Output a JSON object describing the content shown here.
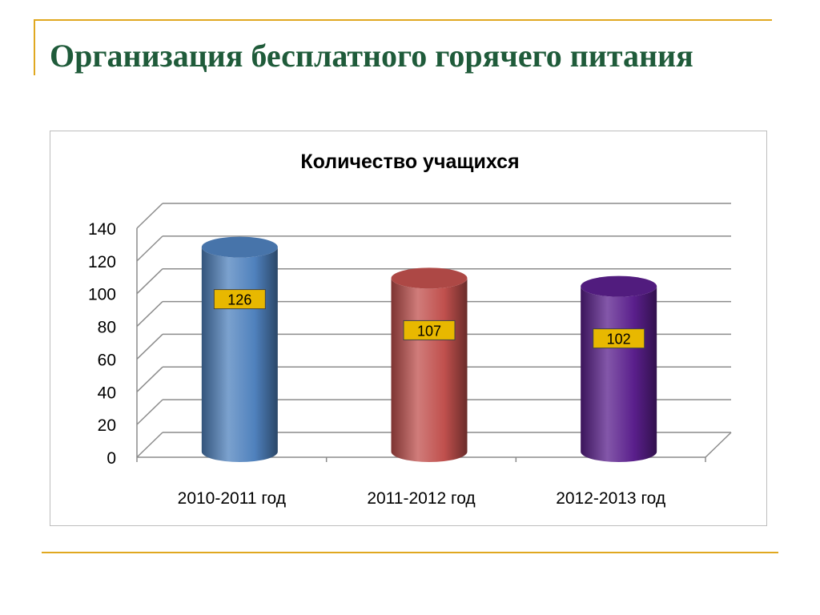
{
  "slide": {
    "title": "Организация бесплатного горячего питания"
  },
  "colors": {
    "title": "#1f5b3a",
    "accent_line": "#e0a820",
    "label_box": "#e8b800"
  },
  "chart_data": {
    "type": "bar",
    "title": "Количество учащихся",
    "xlabel": "",
    "ylabel": "",
    "categories": [
      "2010-2011 год",
      "2011-2012 год",
      "2012-2013 год"
    ],
    "series": [
      {
        "values": [
          126,
          107,
          102
        ]
      }
    ],
    "data_labels": [
      "126",
      "107",
      "102"
    ],
    "bar_colors": [
      "#4f81bd",
      "#c0504d",
      "#5a1f8c"
    ],
    "ylim": [
      0,
      140
    ],
    "yticks": [
      0,
      20,
      40,
      60,
      80,
      100,
      120,
      140
    ],
    "grid": true,
    "legend": "none"
  }
}
